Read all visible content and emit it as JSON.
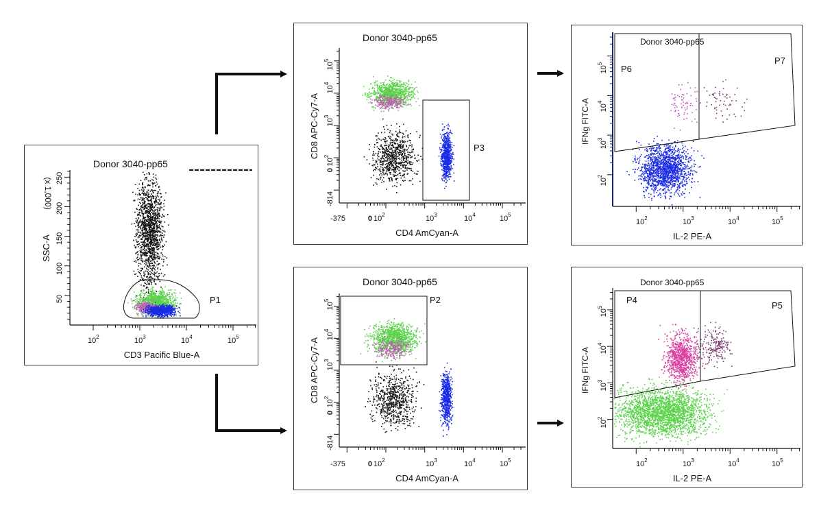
{
  "chart_data": [
    {
      "id": "p1",
      "type": "scatter",
      "title": "Donor 3040-pp65",
      "xlabel": "CD3 Pacific Blue-A",
      "ylabel": "SSC-A",
      "y_multiplier_label": "(x 1,000)",
      "x_scale": "log",
      "x_ticks": [
        "10^2",
        "10^3",
        "10^4",
        "10^5"
      ],
      "y_scale": "linear",
      "y_ticks": [
        50,
        100,
        150,
        200,
        250
      ],
      "gates": [
        {
          "name": "P1"
        }
      ],
      "populations": [
        {
          "color": "#111111",
          "x_range_log": [
            2.9,
            3.5
          ],
          "y_range": [
            60,
            255
          ]
        },
        {
          "color": "#5ad24a",
          "x_range_log": [
            2.9,
            3.8
          ],
          "y_range": [
            18,
            60
          ]
        },
        {
          "color": "#c45ab8",
          "x_range_log": [
            2.9,
            3.4
          ],
          "y_range": [
            20,
            40
          ]
        },
        {
          "color": "#1a2be6",
          "x_range_log": [
            3.1,
            3.8
          ],
          "y_range": [
            15,
            35
          ]
        }
      ]
    },
    {
      "id": "p3",
      "type": "scatter",
      "title": "Donor 3040-pp65",
      "xlabel": "CD4 AmCyan-A",
      "ylabel": "CD8 APC-Cy7-A",
      "x_scale": "log",
      "x_ticks": [
        "-375",
        "0",
        "10^2",
        "10^3",
        "10^4",
        "10^5"
      ],
      "y_ticks": [
        "-814",
        "0",
        "10^2",
        "10^3",
        "10^4",
        "10^5"
      ],
      "gates": [
        {
          "name": "P3"
        }
      ],
      "populations": [
        {
          "color": "#5ad24a",
          "x_range_log": [
            1.6,
            2.7
          ],
          "y_range_log": [
            3.6,
            4.4
          ]
        },
        {
          "color": "#c45ab8",
          "x_range_log": [
            1.6,
            2.5
          ],
          "y_range_log": [
            3.5,
            4.0
          ]
        },
        {
          "color": "#111111",
          "x_range_log": [
            1.6,
            2.8
          ],
          "y_range_log": [
            1.2,
            2.9
          ]
        },
        {
          "color": "#1a2be6",
          "x_range_log": [
            3.4,
            3.7
          ],
          "y_range_log": [
            1.3,
            2.9
          ]
        }
      ]
    },
    {
      "id": "p2",
      "type": "scatter",
      "title": "Donor 3040-pp65",
      "xlabel": "CD4 AmCyan-A",
      "ylabel": "CD8 APC-Cy7-A",
      "x_scale": "log",
      "x_ticks": [
        "-375",
        "0",
        "10^2",
        "10^3",
        "10^4",
        "10^5"
      ],
      "y_ticks": [
        "-814",
        "0",
        "10^2",
        "10^3",
        "10^4",
        "10^5"
      ],
      "gates": [
        {
          "name": "P2"
        }
      ],
      "populations": [
        {
          "color": "#5ad24a",
          "x_range_log": [
            1.6,
            2.8
          ],
          "y_range_log": [
            3.5,
            4.5
          ]
        },
        {
          "color": "#c45ab8",
          "x_range_log": [
            1.7,
            2.6
          ],
          "y_range_log": [
            3.4,
            4.0
          ]
        },
        {
          "color": "#111111",
          "x_range_log": [
            1.6,
            2.8
          ],
          "y_range_log": [
            1.2,
            3.0
          ]
        },
        {
          "color": "#1a2be6",
          "x_range_log": [
            3.4,
            3.7
          ],
          "y_range_log": [
            1.3,
            3.0
          ]
        }
      ]
    },
    {
      "id": "p6",
      "type": "scatter",
      "title": "Donor 3040-pp65",
      "xlabel": "IL-2 PE-A",
      "ylabel": "IFNg FITC-A",
      "x_scale": "log",
      "x_ticks": [
        "10^2",
        "10^3",
        "10^4",
        "10^5"
      ],
      "y_ticks": [
        "10^2",
        "10^3",
        "10^4",
        "10^5"
      ],
      "gates": [
        {
          "name": "P6"
        },
        {
          "name": "P7"
        }
      ],
      "populations": [
        {
          "color": "#1a2be6",
          "x_range_log": [
            2.0,
            3.2
          ],
          "y_range_log": [
            1.5,
            2.8
          ]
        },
        {
          "color": "#c45ab8",
          "x_range_log": [
            2.7,
            3.3
          ],
          "y_range_log": [
            3.3,
            4.3
          ]
        },
        {
          "color": "#7a3a6e",
          "x_range_log": [
            3.4,
            4.3
          ],
          "y_range_log": [
            3.4,
            4.4
          ]
        }
      ]
    },
    {
      "id": "p4",
      "type": "scatter",
      "title": "Donor 3040-pp65",
      "xlabel": "IL-2 PE-A",
      "ylabel": "IFNg FITC-A",
      "x_scale": "log",
      "x_ticks": [
        "10^2",
        "10^3",
        "10^4",
        "10^5"
      ],
      "y_ticks": [
        "10^2",
        "10^3",
        "10^4",
        "10^5"
      ],
      "gates": [
        {
          "name": "P4"
        },
        {
          "name": "P5"
        }
      ],
      "populations": [
        {
          "color": "#5ad24a",
          "x_range_log": [
            1.5,
            3.6
          ],
          "y_range_log": [
            1.5,
            2.9
          ]
        },
        {
          "color": "#d93fa0",
          "x_range_log": [
            2.6,
            3.3
          ],
          "y_range_log": [
            3.0,
            4.4
          ]
        },
        {
          "color": "#7a3a6e",
          "x_range_log": [
            3.3,
            4.0
          ],
          "y_range_log": [
            3.5,
            4.5
          ]
        }
      ]
    }
  ]
}
